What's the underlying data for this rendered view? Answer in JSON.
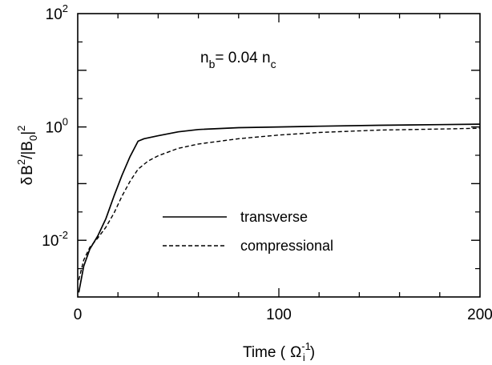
{
  "chart_data": {
    "type": "line",
    "title": "",
    "annotation": {
      "prefix": "n",
      "prefix_sub": "b",
      "middle": "= 0.04 n",
      "suffix_sub": "c"
    },
    "xlabel": {
      "prefix": "Time (",
      "symbol": "Ω",
      "sup": "-1",
      "sub": "i",
      "suffix": ")"
    },
    "ylabel": {
      "delta": "δ",
      "b": "B",
      "sq1": "2",
      "slash": "/",
      "open": "|B",
      "sub0": "0",
      "close": "|",
      "sq2": "2"
    },
    "xlim": [
      0,
      200
    ],
    "ylim_log10": [
      -3,
      2
    ],
    "yscale": "log",
    "x_ticks": [
      {
        "value": 0,
        "label": "0"
      },
      {
        "value": 100,
        "label": "100"
      },
      {
        "value": 200,
        "label": "200"
      }
    ],
    "y_ticks": [
      {
        "exp": 2,
        "base": "10",
        "sup": "2"
      },
      {
        "exp": 0,
        "base": "10",
        "sup": "0"
      },
      {
        "exp": -2,
        "base": "10",
        "sup": "-2"
      }
    ],
    "legend": {
      "placement": "lower-center"
    },
    "series": [
      {
        "name": "transverse",
        "style": "solid",
        "color": "#000000",
        "x": [
          0.5,
          3,
          6,
          10,
          14,
          18,
          22,
          26,
          30,
          33,
          40,
          50,
          60,
          80,
          100,
          120,
          150,
          180,
          200
        ],
        "y": [
          0.0012,
          0.0035,
          0.007,
          0.012,
          0.024,
          0.06,
          0.14,
          0.3,
          0.56,
          0.62,
          0.7,
          0.82,
          0.9,
          0.97,
          1.0,
          1.03,
          1.07,
          1.1,
          1.12
        ]
      },
      {
        "name": "compressional",
        "style": "dashed",
        "color": "#000000",
        "x": [
          0.5,
          3,
          6,
          10,
          14,
          18,
          22,
          26,
          30,
          35,
          40,
          50,
          60,
          80,
          100,
          120,
          150,
          180,
          200
        ],
        "y": [
          0.002,
          0.0045,
          0.0075,
          0.011,
          0.017,
          0.03,
          0.06,
          0.11,
          0.18,
          0.25,
          0.31,
          0.42,
          0.5,
          0.62,
          0.72,
          0.8,
          0.88,
          0.92,
          0.95
        ]
      }
    ]
  }
}
